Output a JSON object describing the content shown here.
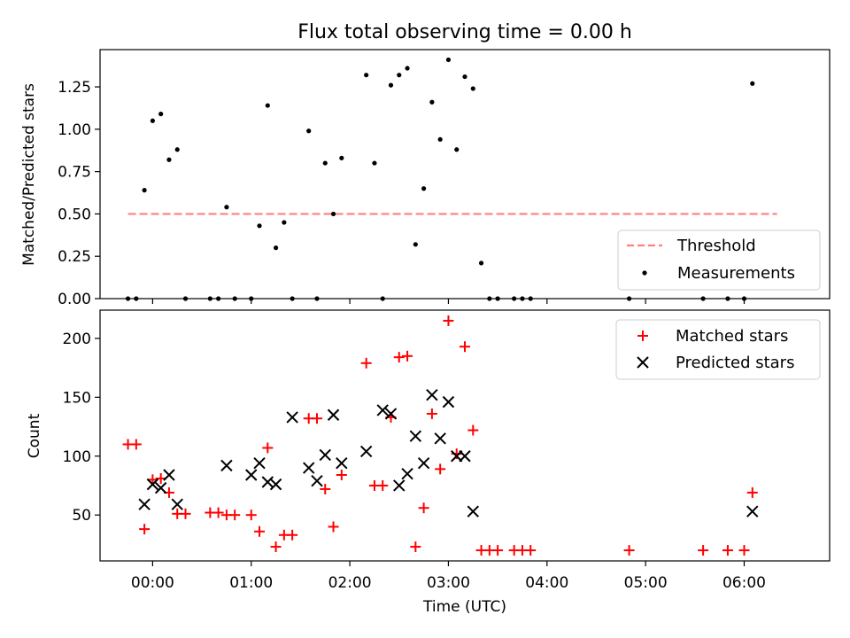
{
  "chart_data": [
    {
      "type": "scatter",
      "title": "Flux total observing time = 0.00 h",
      "xlabel": "",
      "ylabel": "Matched/Predicted stars",
      "x_unit": "time (UTC, HH:MM)",
      "xlim": [
        "-00:32",
        "06:52"
      ],
      "ylim": [
        0,
        1.47
      ],
      "yticks": [
        "0.00",
        "0.25",
        "0.50",
        "0.75",
        "1.00",
        "1.25"
      ],
      "legend_position": "lower right",
      "series": [
        {
          "name": "Threshold",
          "style": "dashed-line",
          "color": "#ff7f7f",
          "x": [
            "-00:15",
            "06:20"
          ],
          "y": [
            0.5,
            0.5
          ]
        },
        {
          "name": "Measurements",
          "style": "dot",
          "color": "#000000",
          "x": [
            "-00:15",
            "-00:10",
            "-00:05",
            "00:00",
            "00:05",
            "00:10",
            "00:15",
            "00:20",
            "00:35",
            "00:40",
            "00:45",
            "00:50",
            "01:00",
            "01:05",
            "01:10",
            "01:15",
            "01:20",
            "01:25",
            "01:35",
            "01:40",
            "01:45",
            "01:50",
            "01:55",
            "02:10",
            "02:15",
            "02:20",
            "02:25",
            "02:30",
            "02:35",
            "02:40",
            "02:45",
            "02:50",
            "02:55",
            "03:00",
            "03:05",
            "03:10",
            "03:15",
            "03:20",
            "03:25",
            "03:30",
            "03:40",
            "03:45",
            "03:50",
            "04:50",
            "05:35",
            "05:50",
            "06:00",
            "06:05"
          ],
          "y": [
            0.0,
            0.0,
            0.64,
            1.05,
            1.09,
            0.82,
            0.88,
            0.0,
            0.0,
            0.0,
            0.54,
            0.0,
            0.0,
            0.43,
            1.14,
            0.3,
            0.45,
            0.0,
            0.99,
            0.0,
            0.8,
            0.5,
            0.83,
            1.32,
            0.8,
            0.0,
            1.26,
            1.32,
            1.36,
            0.32,
            0.65,
            1.16,
            0.94,
            1.41,
            0.88,
            1.31,
            1.24,
            0.21,
            0.0,
            0.0,
            0.0,
            0.0,
            0.0,
            0.0,
            0.0,
            0.0,
            0.0,
            1.27
          ]
        }
      ]
    },
    {
      "type": "scatter",
      "title": "",
      "xlabel": "Time (UTC)",
      "ylabel": "Count",
      "xlim": [
        "-00:32",
        "06:52"
      ],
      "ylim": [
        11,
        224
      ],
      "xticks": [
        "00:00",
        "01:00",
        "02:00",
        "03:00",
        "04:00",
        "05:00",
        "06:00"
      ],
      "yticks": [
        "50",
        "100",
        "150",
        "200"
      ],
      "legend_position": "upper right",
      "series": [
        {
          "name": "Matched stars",
          "marker": "+",
          "color": "#ff0000",
          "x": [
            "-00:15",
            "-00:10",
            "-00:05",
            "00:00",
            "00:05",
            "00:10",
            "00:15",
            "00:20",
            "00:35",
            "00:40",
            "00:45",
            "00:50",
            "01:00",
            "01:05",
            "01:10",
            "01:15",
            "01:20",
            "01:25",
            "01:35",
            "01:40",
            "01:45",
            "01:50",
            "01:55",
            "02:10",
            "02:15",
            "02:20",
            "02:25",
            "02:30",
            "02:35",
            "02:40",
            "02:45",
            "02:50",
            "02:55",
            "03:00",
            "03:05",
            "03:10",
            "03:15",
            "03:20",
            "03:25",
            "03:30",
            "03:40",
            "03:45",
            "03:50",
            "04:50",
            "05:35",
            "05:50",
            "06:00",
            "06:05"
          ],
          "y": [
            110,
            110,
            38,
            80,
            81,
            69,
            51,
            51,
            52,
            52,
            50,
            50,
            50,
            36,
            107,
            23,
            33,
            33,
            132,
            132,
            72,
            40,
            84,
            179,
            75,
            75,
            133,
            184,
            185,
            23,
            56,
            136,
            89,
            215,
            102,
            193,
            122,
            20,
            20,
            20,
            20,
            20,
            20,
            20,
            20,
            20,
            20,
            69
          ]
        },
        {
          "name": "Predicted stars",
          "marker": "x",
          "color": "#000000",
          "x": [
            "-00:05",
            "00:00",
            "00:05",
            "00:10",
            "00:15",
            "00:45",
            "01:00",
            "01:05",
            "01:10",
            "01:15",
            "01:25",
            "01:35",
            "01:40",
            "01:45",
            "01:50",
            "01:55",
            "02:10",
            "02:20",
            "02:25",
            "02:30",
            "02:35",
            "02:40",
            "02:45",
            "02:50",
            "02:55",
            "03:00",
            "03:05",
            "03:10",
            "03:15",
            "06:05"
          ],
          "y": [
            59,
            76,
            73,
            84,
            59,
            92,
            84,
            94,
            78,
            76,
            133,
            90,
            79,
            101,
            135,
            94,
            104,
            139,
            136,
            75,
            85,
            117,
            94,
            152,
            115,
            146,
            100,
            100,
            53,
            53
          ]
        }
      ]
    }
  ]
}
